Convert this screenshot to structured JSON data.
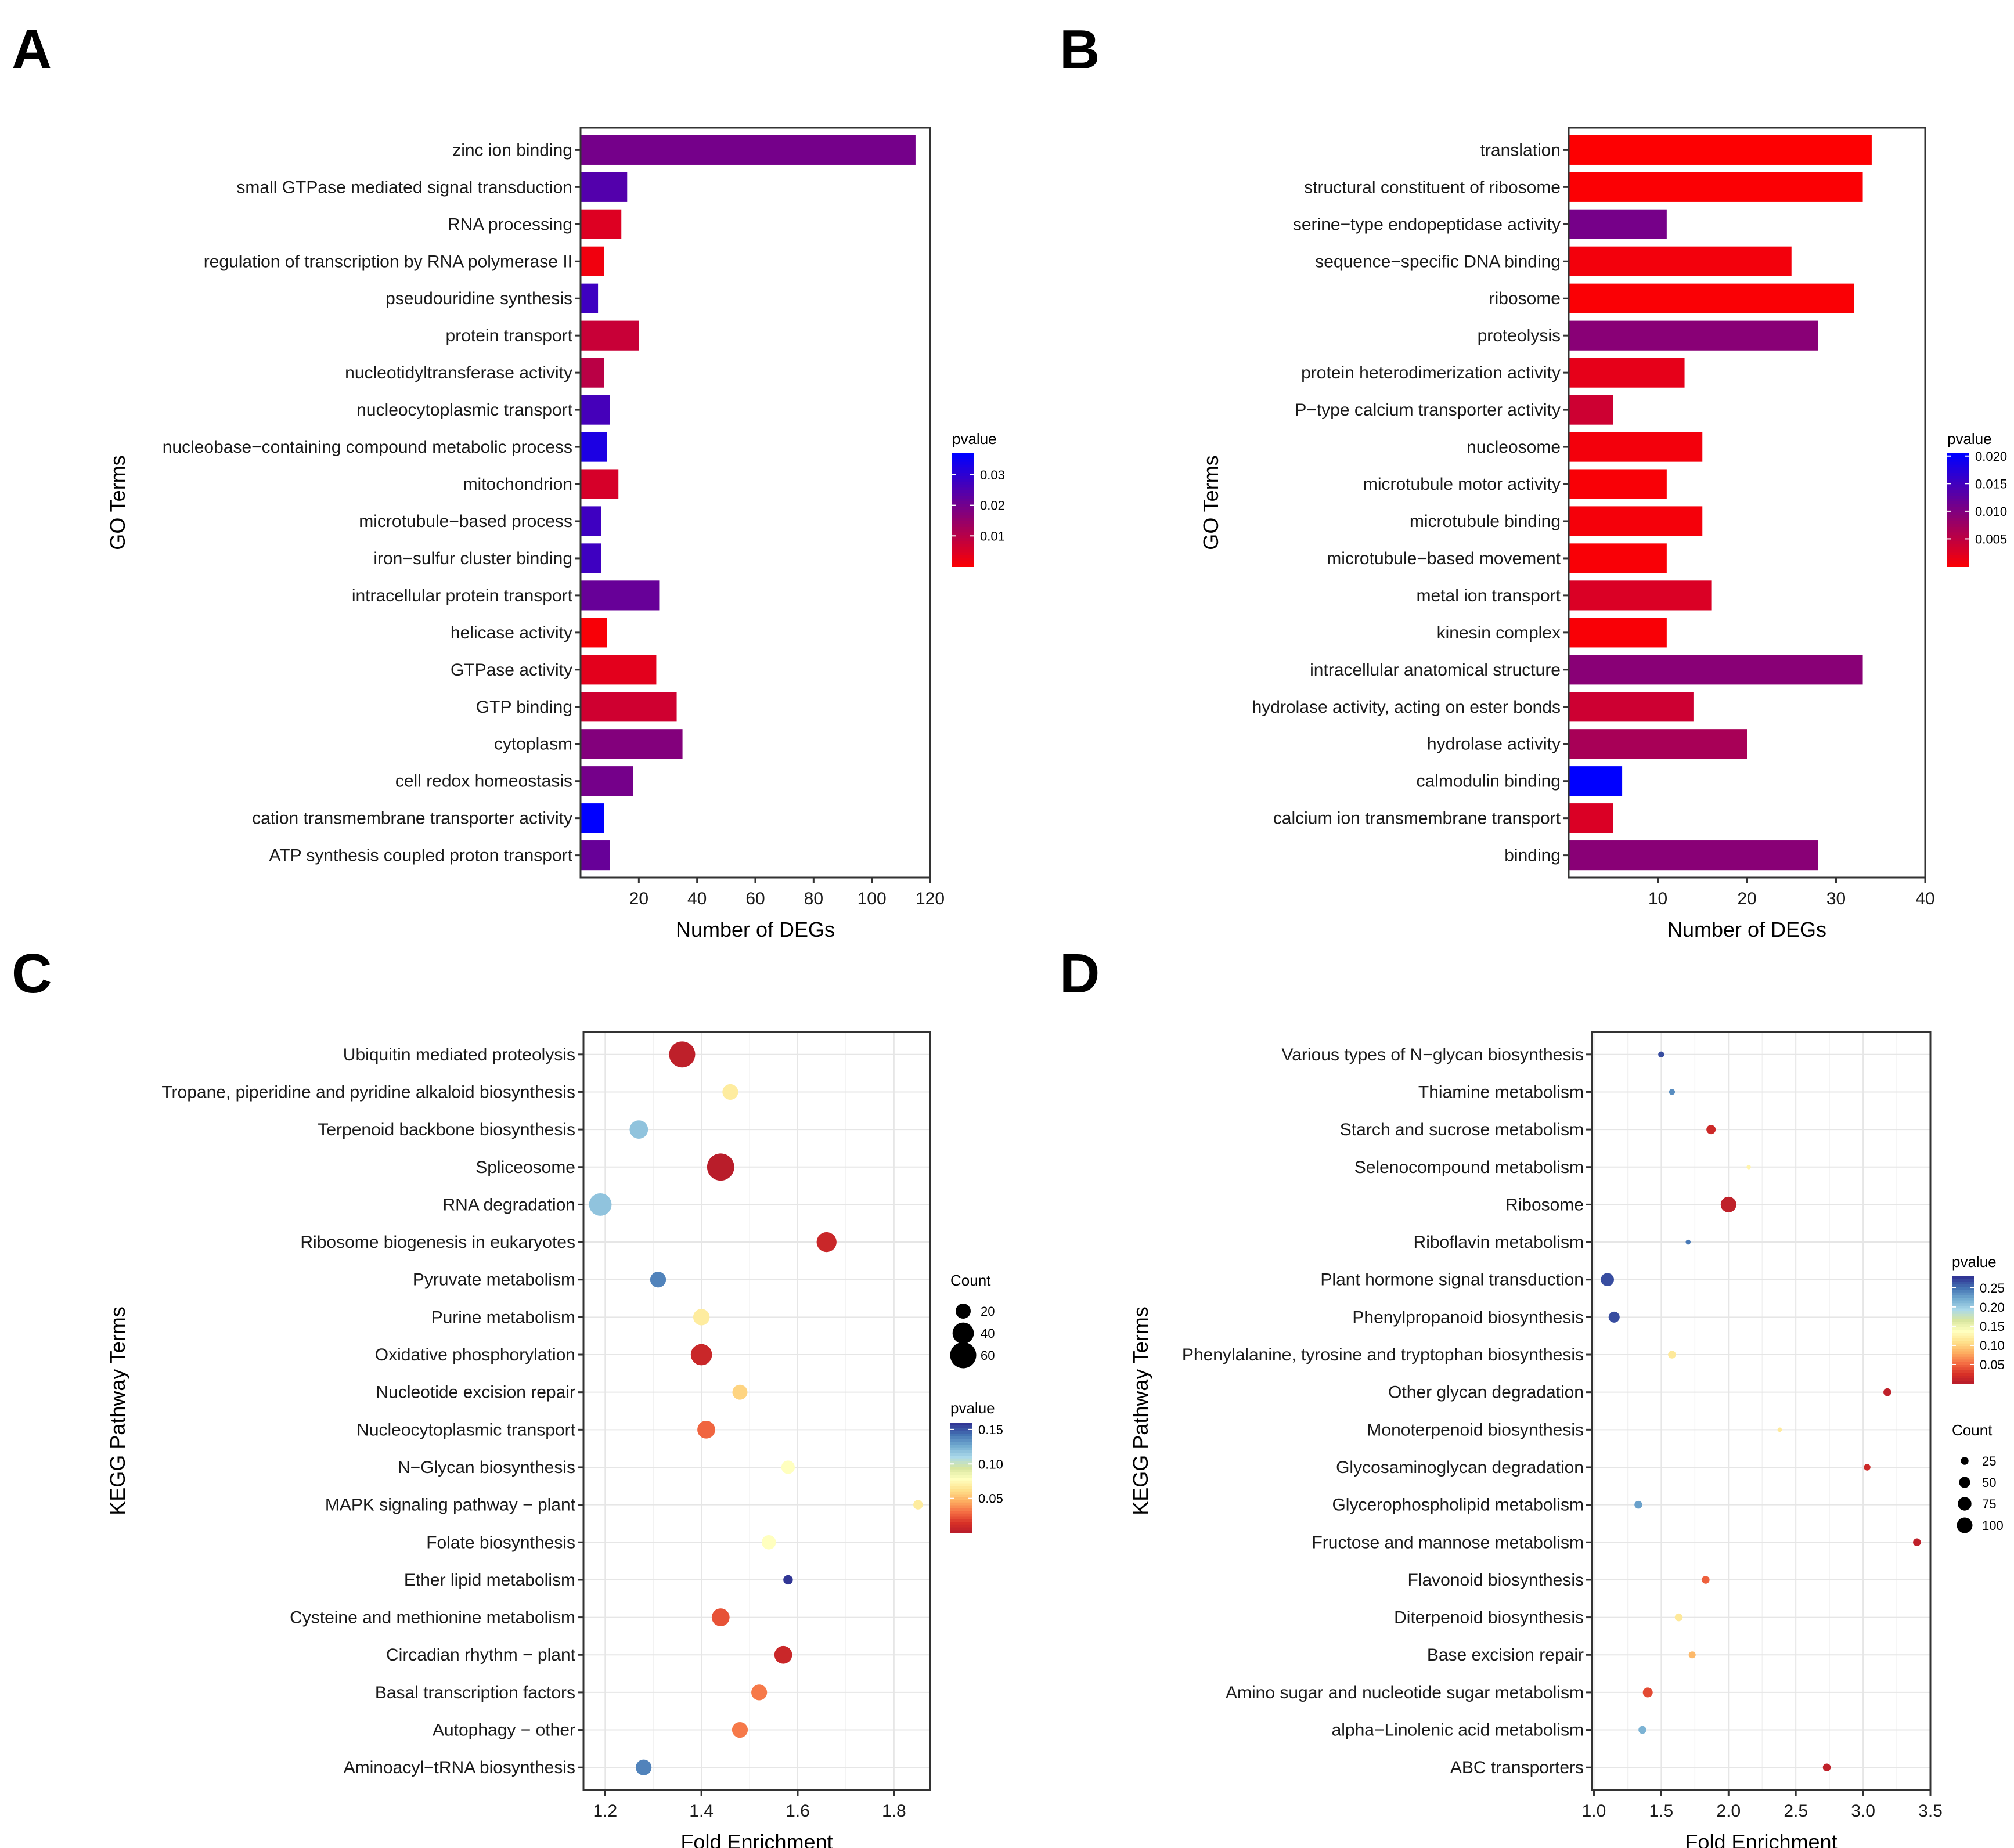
{
  "panels": [
    "A",
    "B",
    "C",
    "D"
  ],
  "chart_data": [
    {
      "panel": "A",
      "type": "bar",
      "orientation": "horizontal",
      "xlabel": "Number of DEGs",
      "ylabel": "GO Terms",
      "xlim": [
        0,
        120
      ],
      "xticks": [
        20,
        40,
        60,
        80,
        100,
        120
      ],
      "categories": [
        "zinc ion binding",
        "small GTPase mediated signal transduction",
        "RNA processing",
        "regulation of transcription by RNA polymerase II",
        "pseudouridine synthesis",
        "protein transport",
        "nucleotidyltransferase activity",
        "nucleocytoplasmic transport",
        "nucleobase−containing compound metabolic process",
        "mitochondrion",
        "microtubule−based process",
        "iron−sulfur cluster binding",
        "intracellular protein transport",
        "helicase activity",
        "GTPase activity",
        "GTP binding",
        "cytoplasm",
        "cell redox homeostasis",
        "cation transmembrane transporter activity",
        "ATP synthesis coupled proton transport"
      ],
      "values": [
        115,
        16,
        14,
        8,
        6,
        20,
        8,
        10,
        9,
        13,
        7,
        7,
        27,
        9,
        26,
        33,
        35,
        18,
        8,
        10
      ],
      "pvalue": [
        0.02,
        0.025,
        0.005,
        0.002,
        0.028,
        0.008,
        0.01,
        0.027,
        0.033,
        0.006,
        0.028,
        0.028,
        0.022,
        0.001,
        0.004,
        0.007,
        0.018,
        0.02,
        0.037,
        0.022
      ],
      "legend": {
        "title": "pvalue",
        "ticks": [
          0.01,
          0.02,
          0.03
        ],
        "tick_labels": [
          "0.01",
          "0.02",
          "0.03"
        ],
        "min": 0.0,
        "max": 0.037,
        "low_color": "#ff0000",
        "high_color": "#0000ff"
      }
    },
    {
      "panel": "B",
      "type": "bar",
      "orientation": "horizontal",
      "xlabel": "Number of DEGs",
      "ylabel": "GO Terms",
      "xlim": [
        0,
        40
      ],
      "xticks": [
        10,
        20,
        30,
        40
      ],
      "categories": [
        "translation",
        "structural constituent of ribosome",
        "serine−type endopeptidase activity",
        "sequence−specific DNA binding",
        "ribosome",
        "proteolysis",
        "protein heterodimerization activity",
        "P−type calcium transporter activity",
        "nucleosome",
        "microtubule motor activity",
        "microtubule binding",
        "microtubule−based movement",
        "metal ion transport",
        "kinesin complex",
        "intracellular anatomical structure",
        "hydrolase activity, acting on ester bonds",
        "hydrolase activity",
        "calmodulin binding",
        "calcium ion transmembrane transport",
        "binding"
      ],
      "values": [
        34,
        33,
        11,
        25,
        32,
        28,
        13,
        5,
        15,
        11,
        15,
        11,
        16,
        11,
        33,
        14,
        20,
        6,
        5,
        28
      ],
      "pvalue": [
        0.0002,
        0.0003,
        0.011,
        0.001,
        0.0004,
        0.0095,
        0.002,
        0.004,
        0.001,
        0.0005,
        0.0008,
        0.0005,
        0.003,
        0.0005,
        0.0095,
        0.004,
        0.007,
        0.0205,
        0.003,
        0.0095
      ],
      "legend": {
        "title": "pvalue",
        "ticks": [
          0.005,
          0.01,
          0.015,
          0.02
        ],
        "tick_labels": [
          "0.005",
          "0.010",
          "0.015",
          "0.020"
        ],
        "min": 0.0,
        "max": 0.0205,
        "low_color": "#ff0000",
        "high_color": "#0000ff"
      }
    },
    {
      "panel": "C",
      "type": "scatter",
      "xlabel": "Fold Enrichment",
      "ylabel": "KEGG Pathway Terms",
      "xlim": [
        1.155,
        1.875
      ],
      "xticks": [
        1.2,
        1.4,
        1.6,
        1.8
      ],
      "xtick_labels": [
        "1.2",
        "1.4",
        "1.6",
        "1.8"
      ],
      "categories": [
        "Ubiquitin mediated proteolysis",
        "Tropane, piperidine and pyridine alkaloid biosynthesis",
        "Terpenoid backbone biosynthesis",
        "Spliceosome",
        "RNA degradation",
        "Ribosome biogenesis in eukaryotes",
        "Pyruvate metabolism",
        "Purine metabolism",
        "Oxidative phosphorylation",
        "Nucleotide excision repair",
        "Nucleocytoplasmic transport",
        "N−Glycan biosynthesis",
        "MAPK signaling pathway − plant",
        "Folate biosynthesis",
        "Ether lipid metabolism",
        "Cysteine and methionine metabolism",
        "Circadian rhythm − plant",
        "Basal transcription factors",
        "Autophagy − other",
        "Aminoacyl−tRNA biosynthesis"
      ],
      "x": [
        1.36,
        1.46,
        1.27,
        1.44,
        1.19,
        1.66,
        1.31,
        1.4,
        1.4,
        1.48,
        1.41,
        1.58,
        1.85,
        1.54,
        1.58,
        1.44,
        1.57,
        1.52,
        1.48,
        1.28
      ],
      "count": [
        60,
        22,
        30,
        65,
        45,
        35,
        22,
        24,
        40,
        20,
        28,
        16,
        8,
        18,
        8,
        28,
        28,
        22,
        22,
        22
      ],
      "pvalue": [
        0.005,
        0.07,
        0.12,
        0.003,
        0.12,
        0.01,
        0.14,
        0.07,
        0.01,
        0.06,
        0.03,
        0.08,
        0.07,
        0.08,
        0.16,
        0.025,
        0.01,
        0.035,
        0.035,
        0.14
      ],
      "legend": {
        "size_title": "Count",
        "size_values": [
          20,
          40,
          60
        ],
        "size_labels": [
          "20",
          "40",
          "60"
        ],
        "color_title": "pvalue",
        "color_ticks": [
          0.05,
          0.1,
          0.15
        ],
        "color_tick_labels": [
          "0.05",
          "0.10",
          "0.15"
        ],
        "color_min": 0.0,
        "color_max": 0.16,
        "palette": [
          "#b2182b",
          "#d73027",
          "#f46d43",
          "#fdae61",
          "#fee08b",
          "#ffffbf",
          "#d8e6a0",
          "#abd9e9",
          "#74add1",
          "#4575b4",
          "#313695"
        ]
      }
    },
    {
      "panel": "D",
      "type": "scatter",
      "xlabel": "Fold Enrichment",
      "ylabel": "KEGG Pathway Terms",
      "xlim": [
        0.985,
        3.5
      ],
      "xticks": [
        1.0,
        1.5,
        2.0,
        2.5,
        3.0,
        3.5
      ],
      "xtick_labels": [
        "1.0",
        "1.5",
        "2.0",
        "2.5",
        "3.0",
        "3.5"
      ],
      "categories": [
        "Various types of N−glycan biosynthesis",
        "Thiamine metabolism",
        "Starch and sucrose metabolism",
        "Selenocompound metabolism",
        "Ribosome",
        "Riboflavin metabolism",
        "Plant hormone signal transduction",
        "Phenylpropanoid biosynthesis",
        "Phenylalanine, tyrosine and tryptophan biosynthesis",
        "Other glycan degradation",
        "Monoterpenoid biosynthesis",
        "Glycosaminoglycan degradation",
        "Glycerophospholipid metabolism",
        "Fructose and mannose metabolism",
        "Flavonoid biosynthesis",
        "Diterpenoid biosynthesis",
        "Base excision repair",
        "Amino sugar and nucleotide sugar metabolism",
        "alpha−Linolenic acid metabolism",
        "ABC transporters"
      ],
      "x": [
        1.5,
        1.58,
        1.87,
        2.15,
        2.0,
        1.7,
        1.1,
        1.15,
        1.58,
        3.18,
        2.38,
        3.03,
        1.33,
        3.4,
        1.83,
        1.63,
        1.73,
        1.4,
        1.36,
        2.73
      ],
      "count": [
        15,
        15,
        35,
        8,
        100,
        10,
        70,
        50,
        25,
        25,
        8,
        18,
        25,
        25,
        25,
        25,
        20,
        40,
        25,
        25
      ],
      "pvalue": [
        0.27,
        0.24,
        0.02,
        0.13,
        0.01,
        0.25,
        0.27,
        0.27,
        0.12,
        0.01,
        0.12,
        0.02,
        0.23,
        0.01,
        0.05,
        0.12,
        0.09,
        0.04,
        0.22,
        0.01
      ],
      "legend": {
        "color_title": "pvalue",
        "color_ticks": [
          0.05,
          0.1,
          0.15,
          0.2,
          0.25
        ],
        "color_tick_labels": [
          "0.05",
          "0.10",
          "0.15",
          "0.20",
          "0.25"
        ],
        "color_min": 0.0,
        "color_max": 0.28,
        "size_title": "Count",
        "size_values": [
          25,
          50,
          75,
          100
        ],
        "size_labels": [
          "25",
          "50",
          "75",
          "100"
        ],
        "palette": [
          "#b2182b",
          "#d73027",
          "#f46d43",
          "#fdae61",
          "#fee08b",
          "#ffffbf",
          "#d8e6a0",
          "#abd9e9",
          "#74add1",
          "#4575b4",
          "#313695"
        ]
      }
    }
  ]
}
